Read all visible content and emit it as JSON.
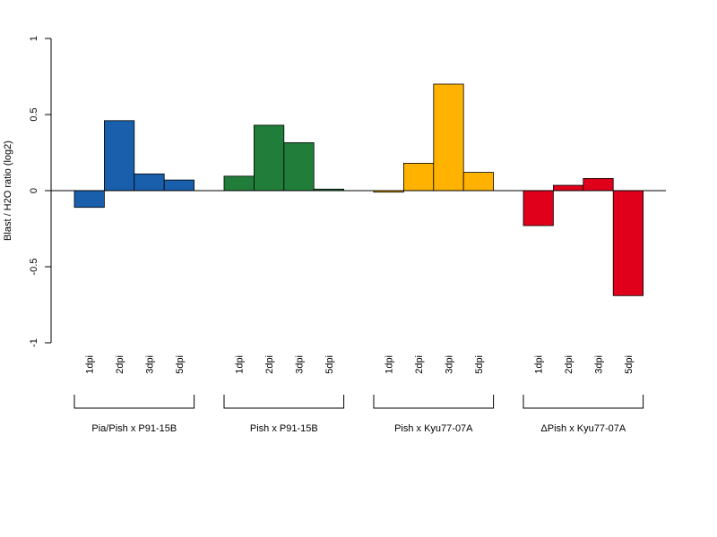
{
  "chart_data": {
    "type": "bar",
    "ylabel": "Blast / H2O ratio (log2)",
    "ylim": [
      -1,
      1
    ],
    "yticks": [
      "-1",
      "-0.5",
      "0",
      "0.5",
      "1"
    ],
    "categories": [
      "1dpi",
      "2dpi",
      "3dpi",
      "5dpi"
    ],
    "groups": [
      {
        "name": "Pia/Pish x P91-15B",
        "color": "#1a5fab",
        "values": [
          -0.11,
          0.46,
          0.11,
          0.07
        ]
      },
      {
        "name": "Pish x P91-15B",
        "color": "#217d3a",
        "values": [
          0.095,
          0.43,
          0.315,
          0.01
        ]
      },
      {
        "name": "Pish x Kyu77-07A",
        "color": "#ffb300",
        "values": [
          -0.01,
          0.18,
          0.7,
          0.12
        ]
      },
      {
        "name": "ΔPish x Kyu77-07A",
        "color": "#e0001b",
        "values": [
          -0.23,
          0.035,
          0.08,
          -0.69
        ]
      }
    ]
  }
}
